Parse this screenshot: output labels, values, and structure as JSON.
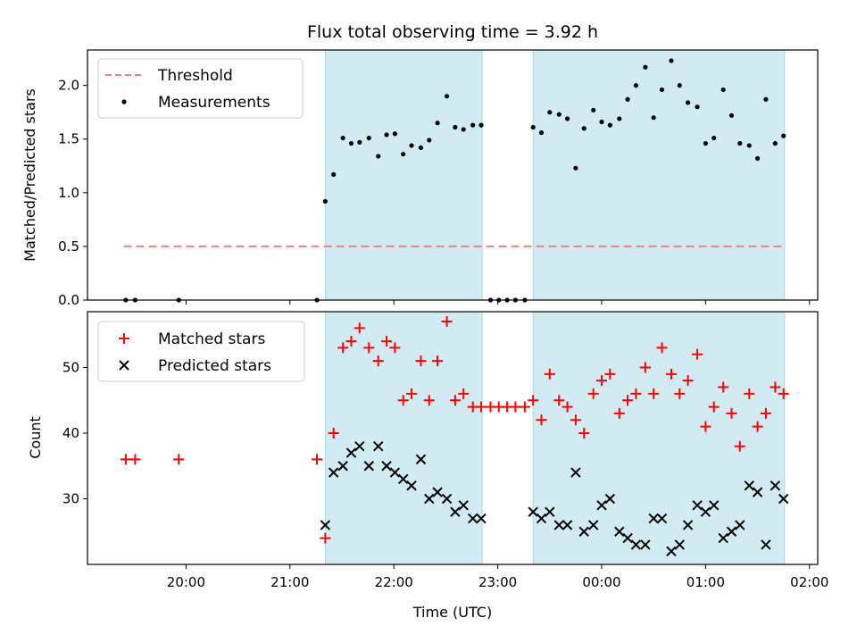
{
  "title": "Flux total observing time = 3.92 h",
  "colors": {
    "threshold": "#f08080",
    "measurement": "#000000",
    "matched": "#ff0000",
    "predicted": "#000000",
    "observing_span": "#add8e6"
  },
  "chart_data": [
    {
      "type": "scatter",
      "name": "ratio-panel",
      "ylabel": "Matched/Predicted stars",
      "xlabel": "",
      "ylim": [
        0,
        2.33
      ],
      "yticks": [
        "0.0",
        "0.5",
        "1.0",
        "1.5",
        "2.0"
      ],
      "ytick_values": [
        0,
        0.5,
        1.0,
        1.5,
        2.0
      ],
      "x_unit": "hours from 00:00 UTC",
      "xlim": [
        -5.0,
        2.07
      ],
      "observing_spans": [
        [
          -2.66,
          -1.15
        ],
        [
          -0.66,
          1.76
        ]
      ],
      "legend_position": "top-left",
      "legend": [
        "Threshold",
        "Measurements"
      ],
      "threshold": {
        "label": "Threshold",
        "value": 0.5,
        "x_range": [
          -4.6,
          1.75
        ]
      },
      "series": [
        {
          "label": "Measurements",
          "points": [
            [
              -4.58,
              0.0
            ],
            [
              -4.49,
              0.0
            ],
            [
              -4.07,
              0.0
            ],
            [
              -2.74,
              0.0
            ],
            [
              -2.66,
              0.92
            ],
            [
              -2.58,
              1.17
            ],
            [
              -2.49,
              1.51
            ],
            [
              -2.41,
              1.46
            ],
            [
              -2.33,
              1.47
            ],
            [
              -2.24,
              1.51
            ],
            [
              -2.15,
              1.34
            ],
            [
              -2.07,
              1.54
            ],
            [
              -1.99,
              1.55
            ],
            [
              -1.91,
              1.36
            ],
            [
              -1.83,
              1.44
            ],
            [
              -1.74,
              1.42
            ],
            [
              -1.66,
              1.49
            ],
            [
              -1.58,
              1.65
            ],
            [
              -1.49,
              1.9
            ],
            [
              -1.41,
              1.61
            ],
            [
              -1.33,
              1.59
            ],
            [
              -1.24,
              1.63
            ],
            [
              -1.16,
              1.63
            ],
            [
              -1.07,
              0.0
            ],
            [
              -0.99,
              0.0
            ],
            [
              -0.91,
              0.0
            ],
            [
              -0.83,
              0.0
            ],
            [
              -0.74,
              0.0
            ],
            [
              -0.66,
              1.61
            ],
            [
              -0.58,
              1.56
            ],
            [
              -0.5,
              1.75
            ],
            [
              -0.41,
              1.73
            ],
            [
              -0.33,
              1.69
            ],
            [
              -0.25,
              1.23
            ],
            [
              -0.17,
              1.6
            ],
            [
              -0.08,
              1.77
            ],
            [
              0.0,
              1.66
            ],
            [
              0.08,
              1.63
            ],
            [
              0.17,
              1.69
            ],
            [
              0.25,
              1.87
            ],
            [
              0.33,
              2.0
            ],
            [
              0.42,
              2.17
            ],
            [
              0.5,
              1.7
            ],
            [
              0.58,
              1.96
            ],
            [
              0.67,
              2.23
            ],
            [
              0.75,
              2.0
            ],
            [
              0.83,
              1.84
            ],
            [
              0.92,
              1.8
            ],
            [
              1.0,
              1.46
            ],
            [
              1.08,
              1.51
            ],
            [
              1.17,
              1.96
            ],
            [
              1.25,
              1.72
            ],
            [
              1.33,
              1.46
            ],
            [
              1.42,
              1.44
            ],
            [
              1.5,
              1.32
            ],
            [
              1.58,
              1.87
            ],
            [
              1.67,
              1.46
            ],
            [
              1.75,
              1.53
            ]
          ]
        }
      ]
    },
    {
      "type": "scatter",
      "name": "count-panel",
      "ylabel": "Count",
      "xlabel": "Time (UTC)",
      "ylim": [
        20,
        58.5
      ],
      "yticks": [
        "30",
        "40",
        "50"
      ],
      "ytick_values": [
        30,
        40,
        50
      ],
      "x_unit": "hours from 00:00 UTC",
      "xlim": [
        -5.0,
        2.07
      ],
      "xticks": [
        "20:00",
        "21:00",
        "22:00",
        "23:00",
        "00:00",
        "01:00",
        "02:00"
      ],
      "xtick_values": [
        -4,
        -3,
        -2,
        -1,
        0,
        1,
        2
      ],
      "observing_spans": [
        [
          -2.66,
          -1.15
        ],
        [
          -0.66,
          1.76
        ]
      ],
      "legend_position": "top-left",
      "legend": [
        "Matched stars",
        "Predicted stars"
      ],
      "series": [
        {
          "label": "Matched stars",
          "marker": "plus",
          "points": [
            [
              -4.58,
              36
            ],
            [
              -4.49,
              36
            ],
            [
              -4.07,
              36
            ],
            [
              -2.74,
              36
            ],
            [
              -2.66,
              24
            ],
            [
              -2.58,
              40
            ],
            [
              -2.49,
              53
            ],
            [
              -2.41,
              54
            ],
            [
              -2.33,
              56
            ],
            [
              -2.24,
              53
            ],
            [
              -2.15,
              51
            ],
            [
              -2.07,
              54
            ],
            [
              -1.99,
              53
            ],
            [
              -1.91,
              45
            ],
            [
              -1.83,
              46
            ],
            [
              -1.74,
              51
            ],
            [
              -1.66,
              45
            ],
            [
              -1.58,
              51
            ],
            [
              -1.49,
              57
            ],
            [
              -1.41,
              45
            ],
            [
              -1.33,
              46
            ],
            [
              -1.24,
              44
            ],
            [
              -1.16,
              44
            ],
            [
              -1.07,
              44
            ],
            [
              -0.99,
              44
            ],
            [
              -0.91,
              44
            ],
            [
              -0.83,
              44
            ],
            [
              -0.74,
              44
            ],
            [
              -0.66,
              45
            ],
            [
              -0.58,
              42
            ],
            [
              -0.5,
              49
            ],
            [
              -0.41,
              45
            ],
            [
              -0.33,
              44
            ],
            [
              -0.25,
              42
            ],
            [
              -0.17,
              40
            ],
            [
              -0.08,
              46
            ],
            [
              0.0,
              48
            ],
            [
              0.08,
              49
            ],
            [
              0.17,
              43
            ],
            [
              0.25,
              45
            ],
            [
              0.33,
              46
            ],
            [
              0.42,
              50
            ],
            [
              0.5,
              46
            ],
            [
              0.58,
              53
            ],
            [
              0.67,
              49
            ],
            [
              0.75,
              46
            ],
            [
              0.83,
              48
            ],
            [
              0.92,
              52
            ],
            [
              1.0,
              41
            ],
            [
              1.08,
              44
            ],
            [
              1.17,
              47
            ],
            [
              1.25,
              43
            ],
            [
              1.33,
              38
            ],
            [
              1.42,
              46
            ],
            [
              1.5,
              41
            ],
            [
              1.58,
              43
            ],
            [
              1.67,
              47
            ],
            [
              1.75,
              46
            ]
          ]
        },
        {
          "label": "Predicted stars",
          "marker": "x",
          "points": [
            [
              -2.66,
              26
            ],
            [
              -2.58,
              34
            ],
            [
              -2.49,
              35
            ],
            [
              -2.41,
              37
            ],
            [
              -2.33,
              38
            ],
            [
              -2.24,
              35
            ],
            [
              -2.15,
              38
            ],
            [
              -2.07,
              35
            ],
            [
              -1.99,
              34
            ],
            [
              -1.91,
              33
            ],
            [
              -1.83,
              32
            ],
            [
              -1.74,
              36
            ],
            [
              -1.66,
              30
            ],
            [
              -1.58,
              31
            ],
            [
              -1.49,
              30
            ],
            [
              -1.41,
              28
            ],
            [
              -1.33,
              29
            ],
            [
              -1.24,
              27
            ],
            [
              -1.16,
              27
            ],
            [
              -0.66,
              28
            ],
            [
              -0.58,
              27
            ],
            [
              -0.5,
              28
            ],
            [
              -0.41,
              26
            ],
            [
              -0.33,
              26
            ],
            [
              -0.25,
              34
            ],
            [
              -0.17,
              25
            ],
            [
              -0.08,
              26
            ],
            [
              0.0,
              29
            ],
            [
              0.08,
              30
            ],
            [
              0.17,
              25
            ],
            [
              0.25,
              24
            ],
            [
              0.33,
              23
            ],
            [
              0.42,
              23
            ],
            [
              0.5,
              27
            ],
            [
              0.58,
              27
            ],
            [
              0.67,
              22
            ],
            [
              0.75,
              23
            ],
            [
              0.83,
              26
            ],
            [
              0.92,
              29
            ],
            [
              1.0,
              28
            ],
            [
              1.08,
              29
            ],
            [
              1.17,
              24
            ],
            [
              1.25,
              25
            ],
            [
              1.33,
              26
            ],
            [
              1.42,
              32
            ],
            [
              1.5,
              31
            ],
            [
              1.58,
              23
            ],
            [
              1.67,
              32
            ],
            [
              1.75,
              30
            ]
          ]
        }
      ]
    }
  ]
}
